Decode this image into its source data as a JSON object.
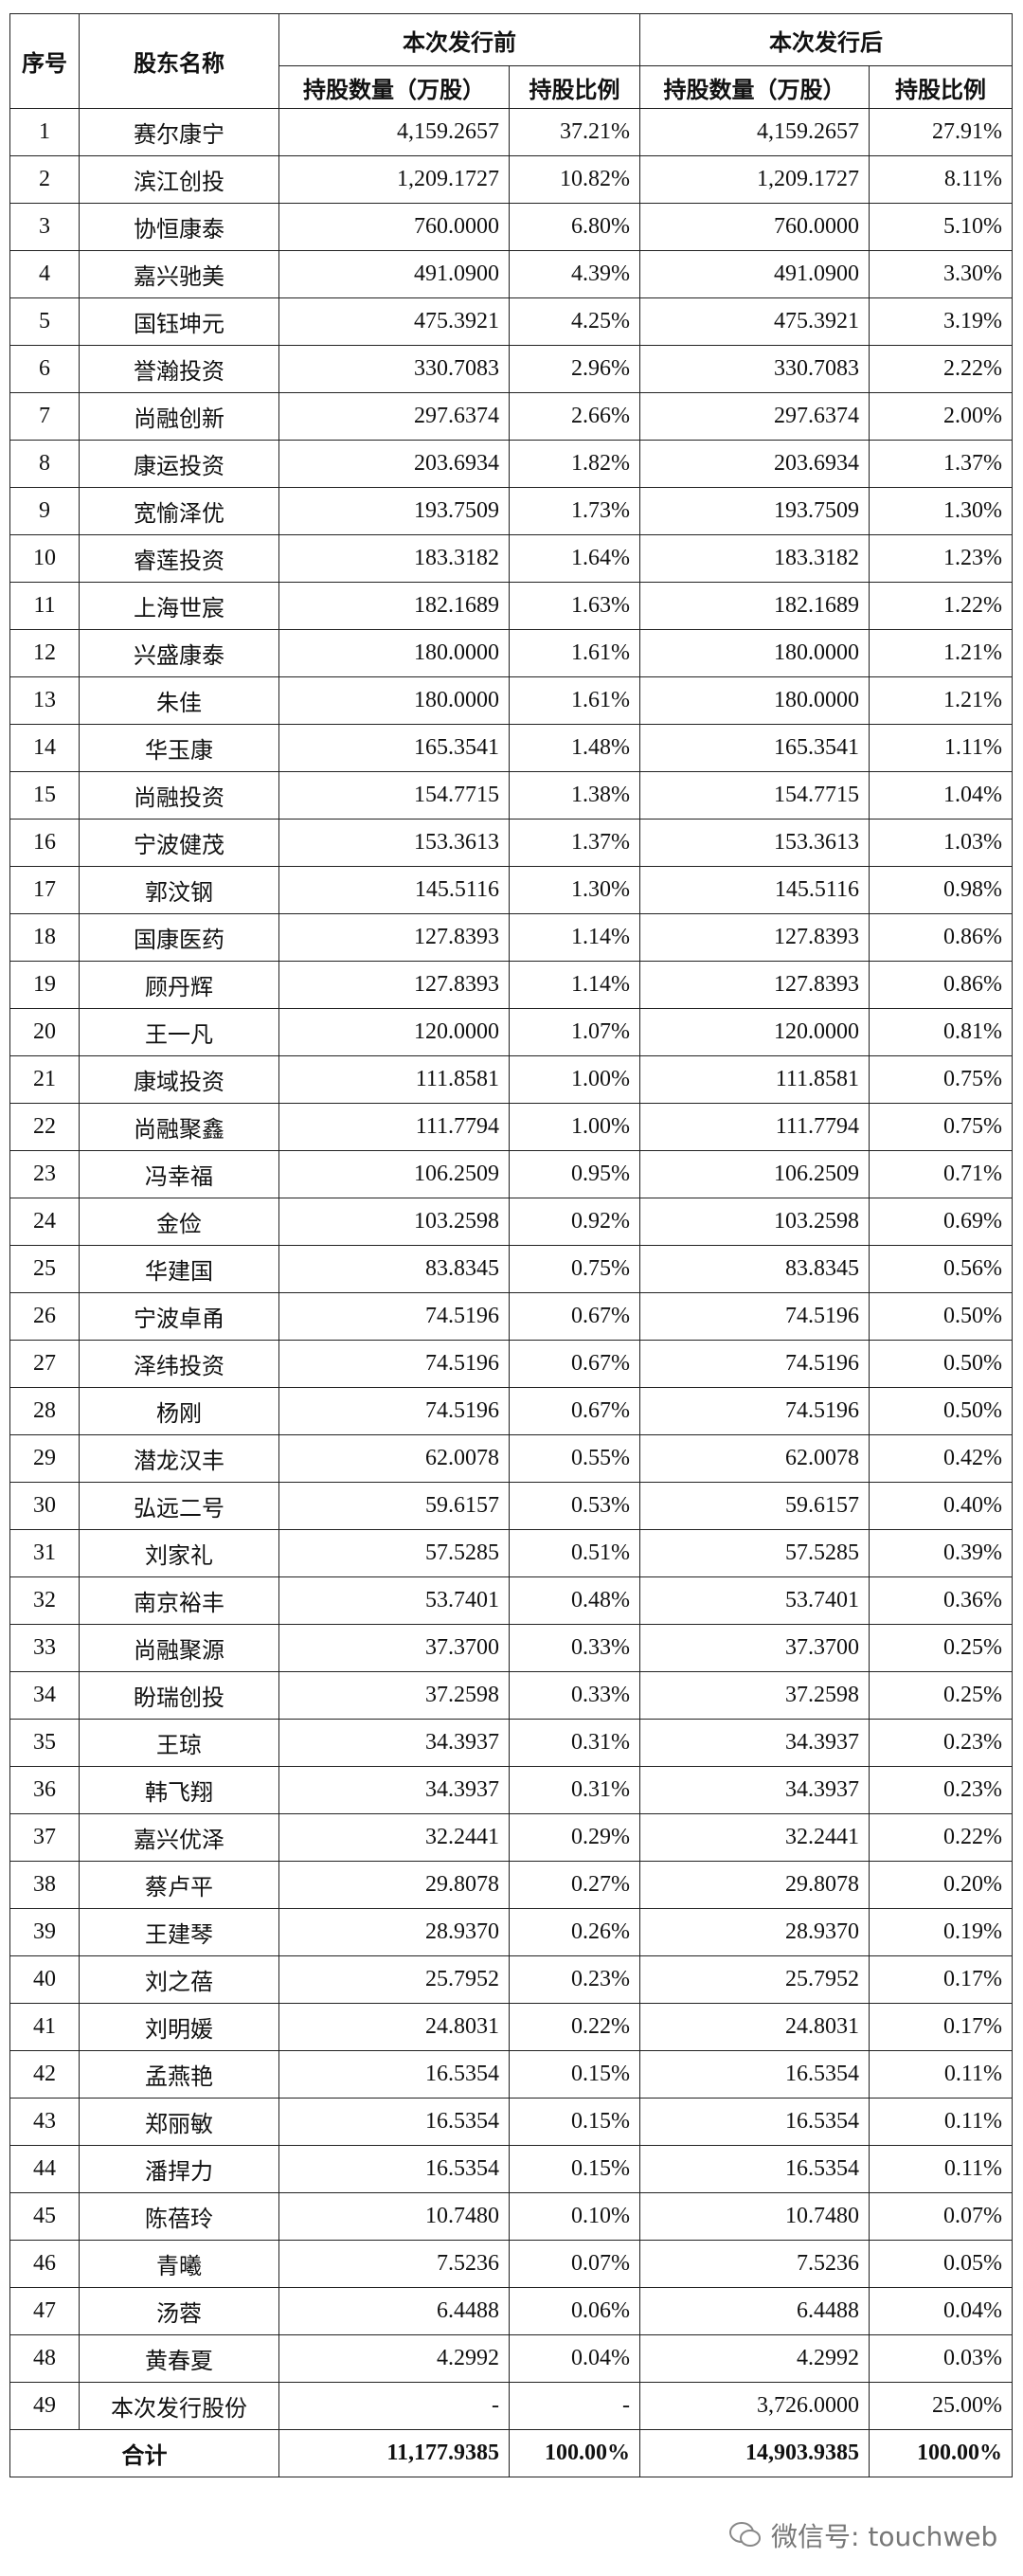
{
  "table": {
    "header": {
      "index": "序号",
      "name": "股东名称",
      "before": "本次发行前",
      "after": "本次发行后",
      "shares_before": "持股数量（万股）",
      "ratio_before": "持股比例",
      "shares_after": "持股数量（万股）",
      "ratio_after": "持股比例"
    },
    "rows": [
      [
        "1",
        "赛尔康宁",
        "4,159.2657",
        "37.21%",
        "4,159.2657",
        "27.91%"
      ],
      [
        "2",
        "滨江创投",
        "1,209.1727",
        "10.82%",
        "1,209.1727",
        "8.11%"
      ],
      [
        "3",
        "协恒康泰",
        "760.0000",
        "6.80%",
        "760.0000",
        "5.10%"
      ],
      [
        "4",
        "嘉兴驰美",
        "491.0900",
        "4.39%",
        "491.0900",
        "3.30%"
      ],
      [
        "5",
        "国钰坤元",
        "475.3921",
        "4.25%",
        "475.3921",
        "3.19%"
      ],
      [
        "6",
        "誉瀚投资",
        "330.7083",
        "2.96%",
        "330.7083",
        "2.22%"
      ],
      [
        "7",
        "尚融创新",
        "297.6374",
        "2.66%",
        "297.6374",
        "2.00%"
      ],
      [
        "8",
        "康运投资",
        "203.6934",
        "1.82%",
        "203.6934",
        "1.37%"
      ],
      [
        "9",
        "宽愉泽优",
        "193.7509",
        "1.73%",
        "193.7509",
        "1.30%"
      ],
      [
        "10",
        "睿莲投资",
        "183.3182",
        "1.64%",
        "183.3182",
        "1.23%"
      ],
      [
        "11",
        "上海世宸",
        "182.1689",
        "1.63%",
        "182.1689",
        "1.22%"
      ],
      [
        "12",
        "兴盛康泰",
        "180.0000",
        "1.61%",
        "180.0000",
        "1.21%"
      ],
      [
        "13",
        "朱佳",
        "180.0000",
        "1.61%",
        "180.0000",
        "1.21%"
      ],
      [
        "14",
        "华玉康",
        "165.3541",
        "1.48%",
        "165.3541",
        "1.11%"
      ],
      [
        "15",
        "尚融投资",
        "154.7715",
        "1.38%",
        "154.7715",
        "1.04%"
      ],
      [
        "16",
        "宁波健茂",
        "153.3613",
        "1.37%",
        "153.3613",
        "1.03%"
      ],
      [
        "17",
        "郭汶钢",
        "145.5116",
        "1.30%",
        "145.5116",
        "0.98%"
      ],
      [
        "18",
        "国康医药",
        "127.8393",
        "1.14%",
        "127.8393",
        "0.86%"
      ],
      [
        "19",
        "顾丹辉",
        "127.8393",
        "1.14%",
        "127.8393",
        "0.86%"
      ],
      [
        "20",
        "王一凡",
        "120.0000",
        "1.07%",
        "120.0000",
        "0.81%"
      ],
      [
        "21",
        "康域投资",
        "111.8581",
        "1.00%",
        "111.8581",
        "0.75%"
      ],
      [
        "22",
        "尚融聚鑫",
        "111.7794",
        "1.00%",
        "111.7794",
        "0.75%"
      ],
      [
        "23",
        "冯幸福",
        "106.2509",
        "0.95%",
        "106.2509",
        "0.71%"
      ],
      [
        "24",
        "金俭",
        "103.2598",
        "0.92%",
        "103.2598",
        "0.69%"
      ],
      [
        "25",
        "华建国",
        "83.8345",
        "0.75%",
        "83.8345",
        "0.56%"
      ],
      [
        "26",
        "宁波卓甬",
        "74.5196",
        "0.67%",
        "74.5196",
        "0.50%"
      ],
      [
        "27",
        "泽纬投资",
        "74.5196",
        "0.67%",
        "74.5196",
        "0.50%"
      ],
      [
        "28",
        "杨刚",
        "74.5196",
        "0.67%",
        "74.5196",
        "0.50%"
      ],
      [
        "29",
        "潜龙汉丰",
        "62.0078",
        "0.55%",
        "62.0078",
        "0.42%"
      ],
      [
        "30",
        "弘远二号",
        "59.6157",
        "0.53%",
        "59.6157",
        "0.40%"
      ],
      [
        "31",
        "刘家礼",
        "57.5285",
        "0.51%",
        "57.5285",
        "0.39%"
      ],
      [
        "32",
        "南京裕丰",
        "53.7401",
        "0.48%",
        "53.7401",
        "0.36%"
      ],
      [
        "33",
        "尚融聚源",
        "37.3700",
        "0.33%",
        "37.3700",
        "0.25%"
      ],
      [
        "34",
        "盼瑞创投",
        "37.2598",
        "0.33%",
        "37.2598",
        "0.25%"
      ],
      [
        "35",
        "王琼",
        "34.3937",
        "0.31%",
        "34.3937",
        "0.23%"
      ],
      [
        "36",
        "韩飞翔",
        "34.3937",
        "0.31%",
        "34.3937",
        "0.23%"
      ],
      [
        "37",
        "嘉兴优泽",
        "32.2441",
        "0.29%",
        "32.2441",
        "0.22%"
      ],
      [
        "38",
        "蔡卢平",
        "29.8078",
        "0.27%",
        "29.8078",
        "0.20%"
      ],
      [
        "39",
        "王建琴",
        "28.9370",
        "0.26%",
        "28.9370",
        "0.19%"
      ],
      [
        "40",
        "刘之蓓",
        "25.7952",
        "0.23%",
        "25.7952",
        "0.17%"
      ],
      [
        "41",
        "刘明媛",
        "24.8031",
        "0.22%",
        "24.8031",
        "0.17%"
      ],
      [
        "42",
        "孟燕艳",
        "16.5354",
        "0.15%",
        "16.5354",
        "0.11%"
      ],
      [
        "43",
        "郑丽敏",
        "16.5354",
        "0.15%",
        "16.5354",
        "0.11%"
      ],
      [
        "44",
        "潘捍力",
        "16.5354",
        "0.15%",
        "16.5354",
        "0.11%"
      ],
      [
        "45",
        "陈蓓玲",
        "10.7480",
        "0.10%",
        "10.7480",
        "0.07%"
      ],
      [
        "46",
        "青曦",
        "7.5236",
        "0.07%",
        "7.5236",
        "0.05%"
      ],
      [
        "47",
        "汤蓉",
        "6.4488",
        "0.06%",
        "6.4488",
        "0.04%"
      ],
      [
        "48",
        "黄春夏",
        "4.2992",
        "0.04%",
        "4.2992",
        "0.03%"
      ],
      [
        "49",
        "本次发行股份",
        "-",
        "-",
        "3,726.0000",
        "25.00%"
      ]
    ],
    "total": [
      "合计",
      "11,177.9385",
      "100.00%",
      "14,903.9385",
      "100.00%"
    ]
  },
  "watermark": "微信号: touchweb"
}
